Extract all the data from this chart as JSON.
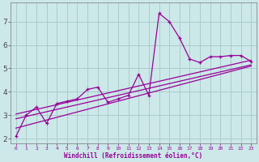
{
  "background_color": "#cce8e8",
  "grid_color": "#aacccc",
  "line_color": "#990099",
  "marker_color": "#990099",
  "xlabel": "Windchill (Refroidissement éolien,°C)",
  "xlabel_color": "#990099",
  "ylabel_color": "#444444",
  "tick_color": "#444444",
  "xlim": [
    -0.5,
    23.5
  ],
  "ylim": [
    1.8,
    7.8
  ],
  "yticks": [
    2,
    3,
    4,
    5,
    6,
    7
  ],
  "xticks": [
    0,
    1,
    2,
    3,
    4,
    5,
    6,
    7,
    8,
    9,
    10,
    11,
    12,
    13,
    14,
    15,
    16,
    17,
    18,
    19,
    20,
    21,
    22,
    23
  ],
  "line1_x": [
    0,
    1,
    2,
    3,
    4,
    5,
    6,
    7,
    8,
    9,
    10,
    11,
    12,
    13,
    14,
    15,
    16,
    17,
    18,
    19,
    20,
    21,
    22,
    23
  ],
  "line1_y": [
    2.1,
    3.0,
    3.35,
    2.65,
    3.5,
    3.6,
    3.7,
    4.1,
    4.2,
    3.55,
    3.7,
    3.85,
    4.75,
    3.85,
    7.35,
    7.0,
    6.3,
    5.4,
    5.25,
    5.5,
    5.5,
    5.55,
    5.55,
    5.3
  ],
  "line2_x": [
    0,
    23
  ],
  "line2_y": [
    2.85,
    5.15
  ],
  "line3_x": [
    0,
    23
  ],
  "line3_y": [
    3.05,
    5.35
  ],
  "line4_x": [
    0,
    23
  ],
  "line4_y": [
    2.45,
    5.1
  ]
}
